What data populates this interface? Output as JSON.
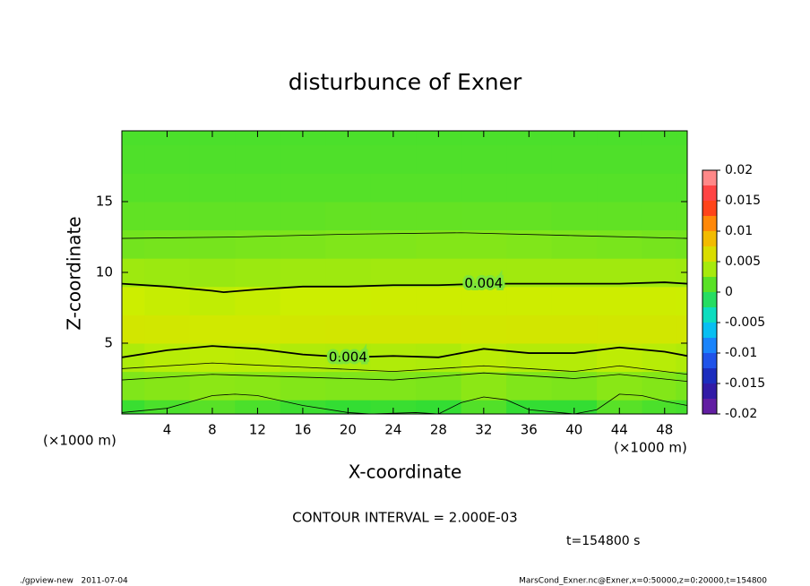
{
  "chart_data": {
    "type": "contour",
    "title": "disturbunce of Exner",
    "xlabel": "X-coordinate",
    "ylabel": "Z-coordinate",
    "x_unit_label": "(×1000 m)",
    "y_unit_label": "(×1000 m)",
    "contour_interval_text": "CONTOUR INTERVAL = 2.000E-03",
    "time_text": "t=154800 s",
    "footer_left": "./gpview-new   2011-07-04",
    "footer_right": "MarsCond_Exner.nc@Exner,x=0:50000,z=0:20000,t=154800",
    "xlim": [
      0,
      50
    ],
    "ylim": [
      0,
      20
    ],
    "xticks": [
      4,
      8,
      12,
      16,
      20,
      24,
      28,
      32,
      36,
      40,
      44,
      48
    ],
    "yticks": [
      5,
      10,
      15
    ],
    "x": [
      0,
      4,
      8,
      12,
      16,
      20,
      24,
      28,
      32,
      36,
      40,
      44,
      48,
      50
    ],
    "z": [
      0,
      2,
      4,
      6,
      8,
      10,
      12,
      14,
      16,
      18,
      20
    ],
    "field": [
      [
        0.0002,
        0.0008,
        0.0012,
        0.0008,
        0.0003,
        0.0,
        0.0002,
        0.0,
        0.001,
        0.0,
        0.0,
        0.0012,
        0.0008,
        0.0006
      ],
      [
        0.0025,
        0.0027,
        0.0029,
        0.0028,
        0.0026,
        0.0025,
        0.0025,
        0.0024,
        0.0029,
        0.0025,
        0.0024,
        0.0028,
        0.0026,
        0.0023
      ],
      [
        0.004,
        0.0043,
        0.0045,
        0.0044,
        0.0041,
        0.004,
        0.0041,
        0.004,
        0.0044,
        0.0042,
        0.0042,
        0.0045,
        0.0043,
        0.0041
      ],
      [
        0.0056,
        0.0055,
        0.0054,
        0.0054,
        0.0055,
        0.0056,
        0.0056,
        0.0056,
        0.0055,
        0.0056,
        0.0056,
        0.0055,
        0.0055,
        0.0055
      ],
      [
        0.005,
        0.0048,
        0.0046,
        0.0048,
        0.005,
        0.005,
        0.0051,
        0.0051,
        0.0051,
        0.0051,
        0.0051,
        0.0051,
        0.0051,
        0.005
      ],
      [
        0.0035,
        0.0034,
        0.0033,
        0.0034,
        0.0035,
        0.0035,
        0.0036,
        0.0036,
        0.0036,
        0.0036,
        0.0036,
        0.0036,
        0.0036,
        0.0035
      ],
      [
        0.0021,
        0.0022,
        0.0022,
        0.0023,
        0.0024,
        0.0025,
        0.0025,
        0.0026,
        0.0026,
        0.0025,
        0.0024,
        0.0023,
        0.0022,
        0.0021
      ],
      [
        0.0015,
        0.0015,
        0.0015,
        0.0015,
        0.0015,
        0.0016,
        0.0016,
        0.0016,
        0.0016,
        0.0016,
        0.0015,
        0.0015,
        0.0015,
        0.0015
      ],
      [
        0.0011,
        0.0011,
        0.0011,
        0.0011,
        0.0011,
        0.0011,
        0.0011,
        0.0011,
        0.0011,
        0.0011,
        0.0011,
        0.0011,
        0.0011,
        0.0011
      ],
      [
        0.0009,
        0.0009,
        0.0009,
        0.0009,
        0.0009,
        0.0009,
        0.0009,
        0.0009,
        0.0009,
        0.0009,
        0.0009,
        0.0009,
        0.0009,
        0.0009
      ],
      [
        0.0008,
        0.0008,
        0.0008,
        0.0008,
        0.0008,
        0.0008,
        0.0008,
        0.0008,
        0.0008,
        0.0008,
        0.0008,
        0.0008,
        0.0008,
        0.0008
      ]
    ],
    "colormap": [
      {
        "value": -0.02,
        "color": "#7a1fa0"
      },
      {
        "value": -0.015,
        "color": "#1a1aa8"
      },
      {
        "value": -0.01,
        "color": "#2266ff"
      },
      {
        "value": -0.005,
        "color": "#00ddee"
      },
      {
        "value": 0,
        "color": "#33dd33"
      },
      {
        "value": 0.005,
        "color": "#ccee00"
      },
      {
        "value": 0.01,
        "color": "#ffaa00"
      },
      {
        "value": 0.015,
        "color": "#ff2222"
      },
      {
        "value": 0.02,
        "color": "#ffaaaa"
      }
    ],
    "colorbar_lim": [
      -0.02,
      0.02
    ],
    "colorbar_step": 0.0025,
    "colorbar_ticks": [
      0.02,
      0.015,
      0.01,
      0.005,
      0,
      -0.005,
      -0.01,
      -0.015,
      -0.02
    ],
    "contours": [
      {
        "level": 0.004,
        "label": "0.004",
        "x": [
          0,
          4,
          8,
          9,
          12,
          16,
          20,
          24,
          28,
          32,
          36,
          40,
          44,
          48,
          50
        ],
        "y": [
          9.2,
          9.0,
          8.7,
          8.6,
          8.8,
          9.0,
          9.0,
          9.1,
          9.1,
          9.2,
          9.2,
          9.2,
          9.2,
          9.3,
          9.2
        ]
      },
      {
        "level": 0.004,
        "label": "0.004",
        "x": [
          0,
          4,
          8,
          12,
          16,
          20,
          24,
          28,
          32,
          36,
          40,
          44,
          48,
          50
        ],
        "y": [
          4.0,
          4.5,
          4.8,
          4.6,
          4.2,
          4.0,
          4.1,
          4.0,
          4.6,
          4.3,
          4.3,
          4.7,
          4.4,
          4.1
        ]
      },
      {
        "level": 0.002,
        "x": [
          0,
          10,
          20,
          30,
          40,
          50
        ],
        "y": [
          12.4,
          12.5,
          12.7,
          12.8,
          12.6,
          12.4
        ]
      },
      {
        "level": 0.003,
        "x": [
          0,
          8,
          16,
          24,
          32,
          40,
          44,
          50
        ],
        "y": [
          3.2,
          3.6,
          3.3,
          3.0,
          3.4,
          3.0,
          3.4,
          2.8
        ]
      },
      {
        "level": 0.0025,
        "x": [
          0,
          8,
          16,
          24,
          32,
          40,
          44,
          50
        ],
        "y": [
          2.4,
          2.8,
          2.6,
          2.4,
          2.9,
          2.5,
          2.8,
          2.3
        ]
      },
      {
        "level": 0.0,
        "x": [
          0,
          4,
          8,
          10,
          12,
          16,
          20,
          22,
          26,
          28,
          30,
          32,
          34,
          36,
          40,
          42,
          44,
          46,
          48,
          50
        ],
        "y": [
          0.1,
          0.4,
          1.3,
          1.4,
          1.3,
          0.6,
          0.1,
          0,
          0.1,
          0,
          0.8,
          1.2,
          1.0,
          0.3,
          0,
          0.3,
          1.4,
          1.3,
          0.9,
          0.6
        ]
      }
    ]
  }
}
